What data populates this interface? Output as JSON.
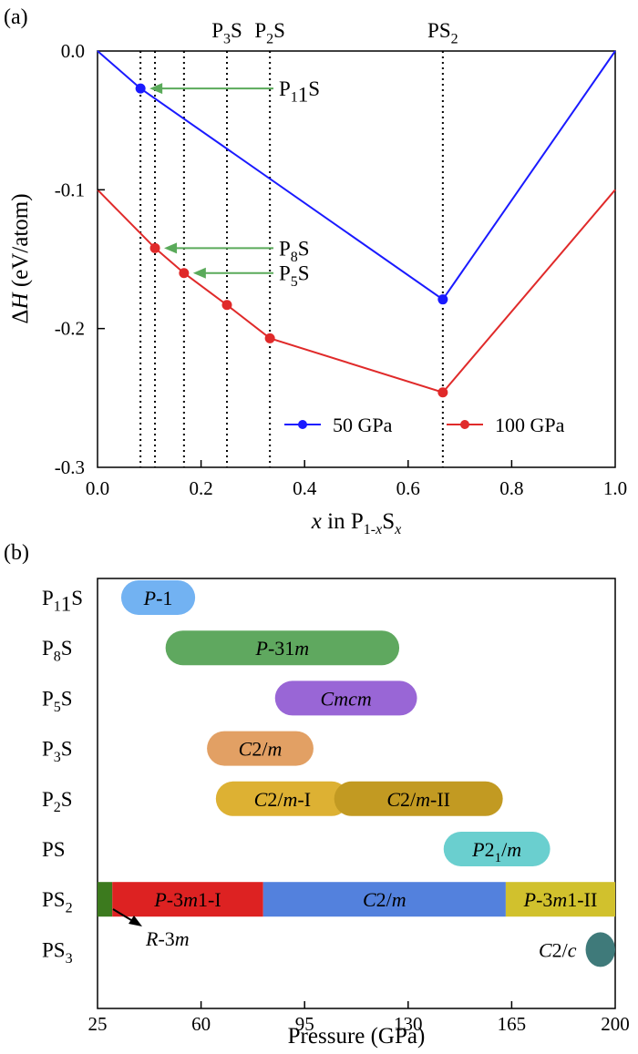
{
  "panel_a": {
    "label": "(a)",
    "ylabel_text": "ΔH (eV/atom)",
    "xlabel_text": "x in P1-xSx",
    "x_ticks": [
      "0.0",
      "0.2",
      "0.4",
      "0.6",
      "0.8",
      "1.0"
    ],
    "y_ticks": [
      "0.0",
      "-0.1",
      "-0.2",
      "-0.3"
    ],
    "top_labels": [
      {
        "text": "P3S",
        "x": 0.25
      },
      {
        "text": "P2S",
        "x": 0.333
      },
      {
        "text": "PS2",
        "x": 0.667
      }
    ],
    "arrow_labels": [
      {
        "text": "P11S",
        "x": 0.083,
        "y": -0.027
      },
      {
        "text": "P8S",
        "x": 0.111,
        "y": -0.142
      },
      {
        "text": "P5S",
        "x": 0.167,
        "y": -0.16
      }
    ],
    "legend": [
      "50 GPa",
      "100 GPa"
    ]
  },
  "panel_b": {
    "label": "(b)",
    "xlabel": "Pressure (GPa)",
    "x_ticks": [
      "25",
      "60",
      "95",
      "130",
      "165",
      "200"
    ],
    "rows": [
      "P11S",
      "P8S",
      "P5S",
      "P3S",
      "P2S",
      "PS",
      "PS2",
      "PS3"
    ],
    "annotation": "R-3m"
  },
  "chart_data": [
    {
      "type": "line",
      "xlabel": "x in P1-xSx",
      "ylabel": "ΔH (eV/atom)",
      "xlim": [
        0.0,
        1.0
      ],
      "ylim": [
        -0.3,
        0.0
      ],
      "grid": false,
      "legend_position": "bottom-right",
      "series": [
        {
          "name": "50 GPa",
          "color": "#1a1aff",
          "points": [
            [
              0.0,
              0.0
            ],
            [
              0.083,
              -0.027
            ],
            [
              0.667,
              -0.179
            ],
            [
              1.0,
              0.0
            ]
          ],
          "markers": [
            [
              0.083,
              -0.027
            ],
            [
              0.667,
              -0.179
            ]
          ]
        },
        {
          "name": "100 GPa",
          "color": "#e02a2a",
          "points": [
            [
              0.0,
              -0.1
            ],
            [
              0.111,
              -0.142
            ],
            [
              0.167,
              -0.16
            ],
            [
              0.25,
              -0.183
            ],
            [
              0.333,
              -0.207
            ],
            [
              0.667,
              -0.246
            ],
            [
              1.0,
              -0.1
            ]
          ],
          "markers": [
            [
              0.111,
              -0.142
            ],
            [
              0.167,
              -0.16
            ],
            [
              0.25,
              -0.183
            ],
            [
              0.333,
              -0.207
            ],
            [
              0.667,
              -0.246
            ]
          ]
        }
      ],
      "vertical_lines": [
        0.083,
        0.111,
        0.167,
        0.25,
        0.333,
        0.667
      ]
    },
    {
      "type": "bar",
      "orientation": "horizontal-range",
      "xlabel": "Pressure (GPa)",
      "xlim": [
        25,
        200
      ],
      "categories": [
        "P11S",
        "P8S",
        "P5S",
        "P3S",
        "P2S",
        "PS",
        "PS2",
        "PS3"
      ],
      "phases": [
        {
          "compound": "P11S",
          "phase": "P-1",
          "start": 33,
          "end": 58,
          "color": "#72b2f2",
          "rounded": true
        },
        {
          "compound": "P8S",
          "phase": "P-31m",
          "start": 48,
          "end": 127,
          "color": "#5fa85f",
          "rounded": true
        },
        {
          "compound": "P5S",
          "phase": "Cmcm",
          "start": 85,
          "end": 133,
          "color": "#9966d6",
          "rounded": true
        },
        {
          "compound": "P3S",
          "phase": "C2/m",
          "start": 62,
          "end": 98,
          "color": "#e2a064",
          "rounded": true
        },
        {
          "compound": "P2S",
          "phase": "C2/m-I",
          "start": 65,
          "end": 110,
          "color": "#ddb133",
          "rounded": true
        },
        {
          "compound": "P2S",
          "phase": "C2/m-II",
          "start": 105,
          "end": 162,
          "color": "#c29a22",
          "rounded": true
        },
        {
          "compound": "PS",
          "phase": "P21/m",
          "start": 142,
          "end": 178,
          "color": "#6acfcf",
          "rounded": true
        },
        {
          "compound": "PS2",
          "phase": "R-3m",
          "start": 25,
          "end": 30,
          "color": "#3c7a1e",
          "rounded": false
        },
        {
          "compound": "PS2",
          "phase": "P-3m1-I",
          "start": 30,
          "end": 81,
          "color": "#dd2222",
          "rounded": false
        },
        {
          "compound": "PS2",
          "phase": "C2/m",
          "start": 81,
          "end": 163,
          "color": "#5381dd",
          "rounded": false
        },
        {
          "compound": "PS2",
          "phase": "P-3m1-II",
          "start": 163,
          "end": 200,
          "color": "#d1c12d",
          "rounded": false
        },
        {
          "compound": "PS3",
          "phase": "C2/c",
          "start": 190,
          "end": 200,
          "color": "#3f7a7a",
          "rounded": true
        }
      ]
    }
  ]
}
